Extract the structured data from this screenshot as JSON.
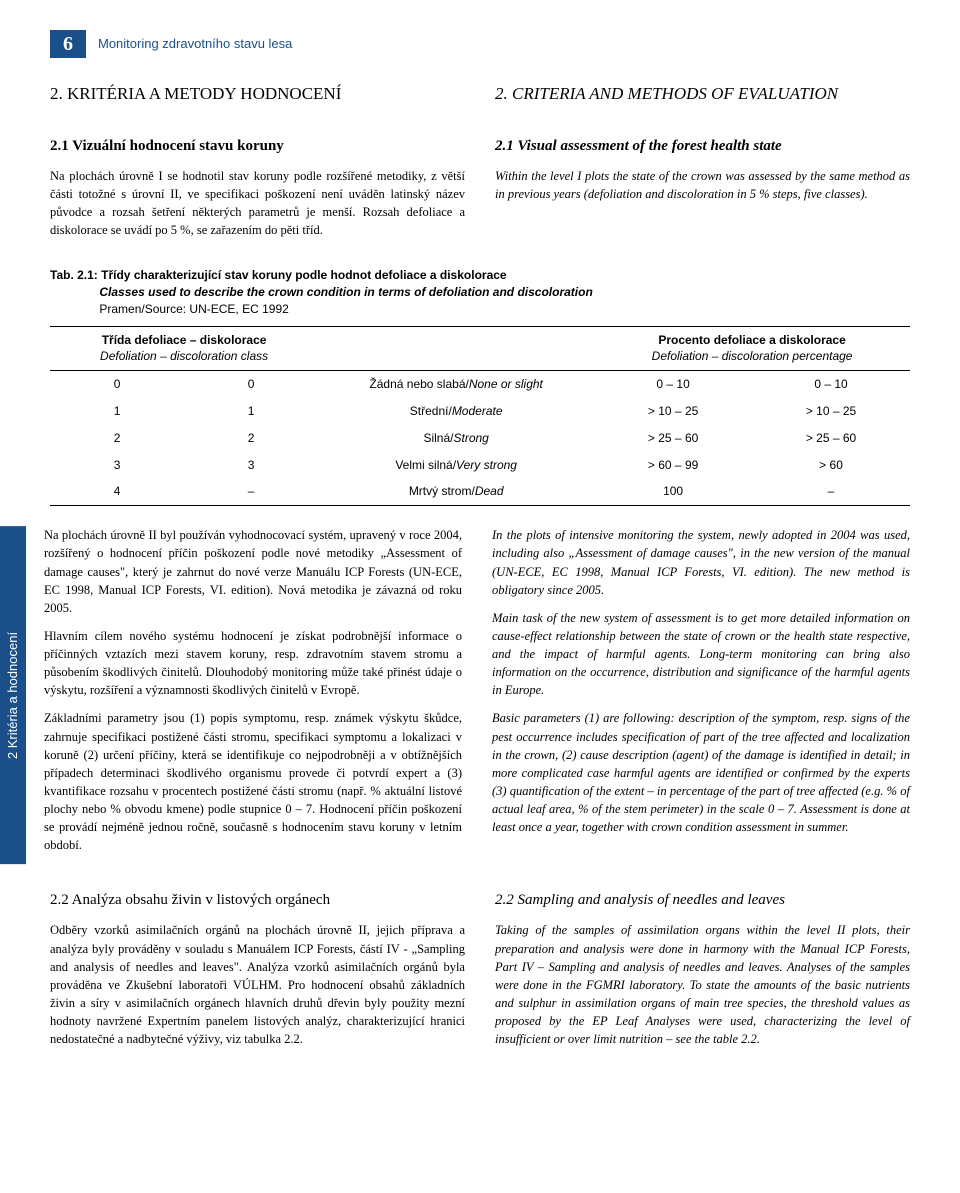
{
  "header": {
    "page_number": "6",
    "title": "Monitoring zdravotního stavu lesa"
  },
  "section2": {
    "left_title": "2. KRITÉRIA A METODY HODNOCENÍ",
    "right_title": "2. CRITERIA AND METHODS OF EVALUATION"
  },
  "section21": {
    "left_head": "2.1 Vizuální hodnocení stavu koruny",
    "left_para": "Na plochách úrovně I se hodnotil stav koruny podle rozšířené metodiky, z větší části totožné s úrovní II, ve specifikaci poškození není uváděn latinský název původce a rozsah šetření některých parametrů je menší. Rozsah defoliace a diskolorace se uvádí po 5 %, se zařazením do pěti tříd.",
    "right_head": "2.1 Visual assessment of the forest health state",
    "right_para": "Within the level I plots the state of the crown was assessed by the same method as in previous years (defoliation and discoloration in 5 % steps, five classes)."
  },
  "table": {
    "caption_label": "Tab. 2.1:",
    "caption_cz": "Třídy charakterizující stav koruny podle hodnot defoliace a diskolorace",
    "caption_en": "Classes used to describe the crown condition in terms of defoliation and discoloration",
    "caption_src": "Pramen/Source: UN-ECE, EC 1992",
    "head_left_cz": "Třída defoliace – diskolorace",
    "head_left_en": "Defoliation – discoloration class",
    "head_right_cz": "Procento defoliace a diskolorace",
    "head_right_en": "Defoliation – discoloration percentage",
    "rows": [
      {
        "c1": "0",
        "c2": "0",
        "desc": "Žádná nebo slabá/None or slight",
        "p1": "0 – 10",
        "p2": "0 – 10"
      },
      {
        "c1": "1",
        "c2": "1",
        "desc": "Střední/Moderate",
        "p1": "> 10 – 25",
        "p2": "> 10 – 25"
      },
      {
        "c1": "2",
        "c2": "2",
        "desc": "Silná/Strong",
        "p1": "> 25 – 60",
        "p2": "> 25 – 60"
      },
      {
        "c1": "3",
        "c2": "3",
        "desc": "Velmi silná/Very strong",
        "p1": "> 60 – 99",
        "p2": "> 60"
      },
      {
        "c1": "4",
        "c2": "–",
        "desc": "Mrtvý strom/Dead",
        "p1": "100",
        "p2": "–"
      }
    ]
  },
  "sidetab": {
    "label": "2 Kritéria a hodnocení"
  },
  "middle": {
    "cz_p1": "Na plochách úrovně II byl používán vyhodnocovací systém, upravený v roce 2004, rozšířený o hodnocení příčin poškození podle nové metodiky „Assessment of damage causes\", který je zahrnut do nové verze Manuálu ICP Forests (UN-ECE, EC 1998, Manual ICP Forests, VI. edition). Nová metodika je závazná od roku 2005.",
    "cz_p2": "Hlavním cílem nového systému hodnocení je získat podrobnější informace o příčinných vztazích mezi stavem koruny, resp. zdravotním stavem stromu a působením škodlivých činitelů. Dlouhodobý monitoring může také přinést údaje o výskytu, rozšíření a významnosti škodlivých činitelů v Evropě.",
    "cz_p3": "Základními parametry jsou (1) popis symptomu, resp. známek výskytu škůdce, zahrnuje specifikaci postižené části stromu, specifikaci symptomu a lokalizaci v koruně (2) určení příčiny, která se identifikuje co nejpodrobněji a v obtížnějších případech determinaci škodlivého organismu provede či potvrdí expert a (3) kvantifikace rozsahu v procentech postižené části stromu (např. % aktuální listové plochy nebo % obvodu kmene) podle stupnice 0 – 7. Hodnocení příčin poškození se provádí nejméně jednou ročně, současně s hodnocením stavu koruny v letním období.",
    "en_p1": "In the plots of intensive monitoring the system, newly adopted in 2004 was used, including also „Assessment of damage causes\", in the new version of the manual (UN-ECE, EC 1998, Manual ICP Forests, VI. edition). The new method is obligatory since 2005.",
    "en_p2": "Main task of the new system of assessment is to get more detailed information on cause-effect relationship between the state of crown or the health state respective, and the impact of harmful agents. Long-term monitoring can bring also information on the occurrence, distribution and significance of the harmful agents in Europe.",
    "en_p3": "Basic parameters (1) are following: description of the symptom, resp. signs of the pest occurrence includes specification of part of the tree affected and localization in the crown, (2) cause description (agent) of the damage is identified in detail; in more complicated case harmful agents are identified or confirmed by the experts (3) quantification of the extent – in percentage of the part of tree affected (e.g. % of actual leaf area, % of the stem perimeter) in the scale 0 – 7. Assessment is done at least once a year, together with crown condition assessment in summer."
  },
  "section22": {
    "cz_head": "2.2 Analýza obsahu živin v listových orgánech",
    "cz_para": "Odběry vzorků asimilačních orgánů na plochách úrovně II, jejich příprava a analýza byly prováděny v souladu s Manuálem ICP Forests, částí IV - „Sampling and analysis of needles and leaves\". Analýza vzorků asimilačních orgánů byla prováděna ve Zkušební laboratoři VÚLHM. Pro hodnocení obsahů základních živin a síry v asimilačních orgánech hlavních druhů dřevin byly použity mezní hodnoty navržené Expertním panelem listových analýz, charakterizující hranici nedostatečné a nadbytečné výživy, viz tabulka 2.2.",
    "en_head": "2.2 Sampling and analysis of needles and leaves",
    "en_para": "Taking of the samples of assimilation organs within the level II plots, their preparation and analysis were done in harmony with the Manual ICP Forests, Part IV – Sampling and analysis of needles and leaves. Analyses of the samples were done in the FGMRI laboratory. To state the amounts of the basic nutrients and sulphur in assimilation organs of main tree species, the threshold values as proposed by the EP Leaf Analyses were used, characterizing the level of insufficient or over limit nutrition – see the table 2.2."
  },
  "colors": {
    "brand": "#1a4f8a",
    "text": "#000000",
    "bg": "#ffffff"
  }
}
